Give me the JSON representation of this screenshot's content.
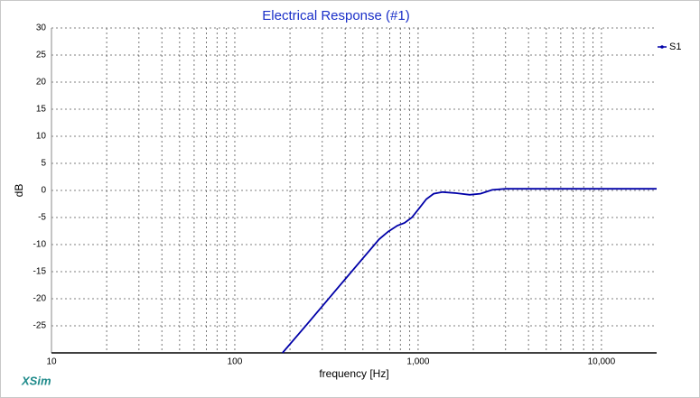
{
  "chart_data": {
    "type": "line",
    "title": "Electrical Response (#1)",
    "x_label": "frequency [Hz]",
    "y_label": "dB",
    "watermark": "XSim",
    "x": [
      182,
      248,
      348,
      489,
      613,
      687,
      770,
      843,
      924,
      1013,
      1109,
      1216,
      1361,
      1612,
      1910,
      2187,
      2535,
      3000,
      4700,
      20000
    ],
    "series": [
      {
        "name": "S1",
        "color": "#0000a8",
        "values": [
          -30,
          -24.7,
          -18.8,
          -12.9,
          -9.0,
          -7.6,
          -6.5,
          -6.0,
          -5.0,
          -3.3,
          -1.6,
          -0.6,
          -0.3,
          -0.5,
          -0.8,
          -0.6,
          0.1,
          0.3,
          0.3,
          0.3
        ]
      }
    ],
    "xscale": "log",
    "xlim": [
      10,
      20000
    ],
    "xticks": [
      10,
      100,
      {
        "value": 1000,
        "label": "1,000"
      },
      {
        "value": 10000,
        "label": "10,000"
      }
    ],
    "ylim": [
      -30,
      30
    ],
    "yticks": [
      30,
      25,
      20,
      15,
      10,
      5,
      0,
      -5,
      -10,
      -15,
      -20,
      -25
    ],
    "grid": true,
    "minor_grid": true,
    "legend": "right"
  }
}
